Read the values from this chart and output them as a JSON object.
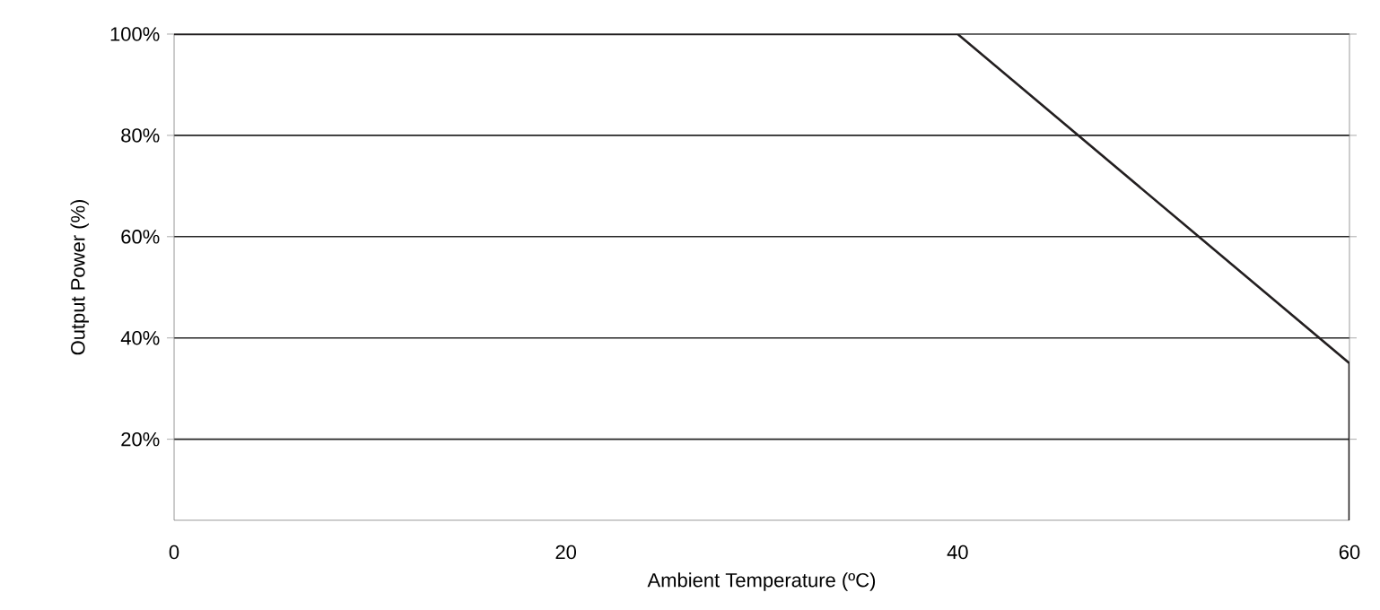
{
  "chart_data": {
    "type": "line",
    "xlabel": "Ambient Temperature (ºC)",
    "ylabel": "Output Power (%)",
    "x": [
      0,
      40,
      60,
      60
    ],
    "values": [
      100,
      100,
      35,
      4
    ],
    "color": "#231f20",
    "xlim": [
      0,
      60
    ],
    "xticks": [
      0,
      20,
      40,
      60
    ],
    "ylim": [
      4,
      100
    ],
    "yticks": [
      {
        "value": 20,
        "label": "20%"
      },
      {
        "value": 40,
        "label": "40%"
      },
      {
        "value": 60,
        "label": "60%"
      },
      {
        "value": 80,
        "label": "80%"
      },
      {
        "value": 100,
        "label": "100%"
      }
    ],
    "grid": "y",
    "marker": "none",
    "line_style": "solid"
  }
}
